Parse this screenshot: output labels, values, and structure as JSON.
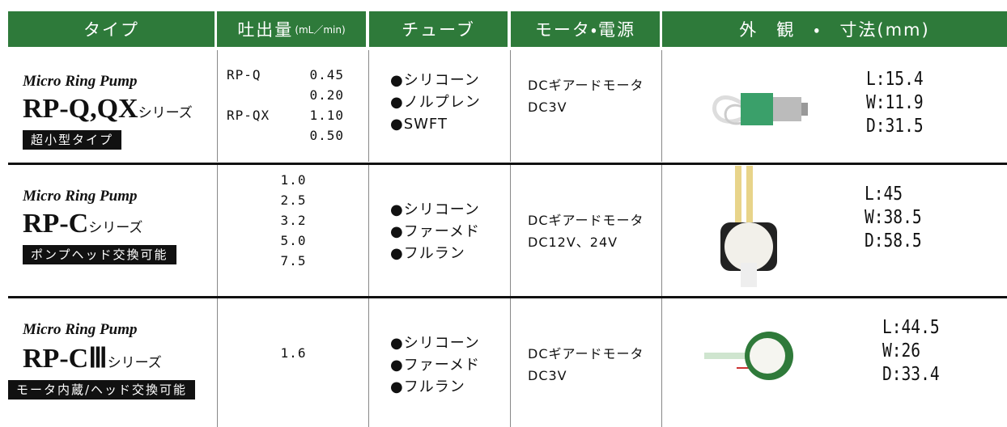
{
  "header": {
    "type": "タイプ",
    "flow": "吐出量",
    "flow_unit": "(mL／min)",
    "tube": "チューブ",
    "motor": "モータ・電源",
    "appearance": "外　観　・　寸法(mm)"
  },
  "rows": [
    {
      "brand": "Micro Ring Pump",
      "model": "RP-Q,QX",
      "suffix": "シリーズ",
      "badge": "超小型タイプ",
      "flow": [
        {
          "model": "RP-Q",
          "values": [
            "0.45",
            "0.20"
          ]
        },
        {
          "model": "RP-QX",
          "values": [
            "1.10",
            "0.50"
          ]
        }
      ],
      "tubes": [
        "●シリコーン",
        "●ノルプレン",
        "●SWFT"
      ],
      "motor": [
        "DCギアードモータ",
        "DC3V"
      ],
      "dims": [
        "L:15.4",
        "W:11.9",
        "D:31.5"
      ]
    },
    {
      "brand": "Micro Ring Pump",
      "model": "RP-C",
      "suffix": "シリーズ",
      "badge": "ポンプヘッド交換可能",
      "flow": [
        {
          "model": null,
          "values": [
            "1.0",
            "2.5",
            "3.2",
            "5.0",
            "7.5"
          ]
        }
      ],
      "tubes": [
        "●シリコーン",
        "●ファーメド",
        "●フルラン"
      ],
      "motor": [
        "DCギアードモータ",
        "DC12V、24V"
      ],
      "dims": [
        "L:45",
        "W:38.5",
        "D:58.5"
      ]
    },
    {
      "brand": "Micro Ring Pump",
      "model": "RP-CⅢ",
      "suffix": "シリーズ",
      "badge": "モータ内蔵/ヘッド交換可能",
      "flow": [
        {
          "model": null,
          "values": [
            "1.6"
          ]
        }
      ],
      "tubes": [
        "●シリコーン",
        "●ファーメド",
        "●フルラン"
      ],
      "motor": [
        "DCギアードモータ",
        "DC3V"
      ],
      "dims": [
        "L:44.5",
        "W:26",
        "D:33.4"
      ]
    }
  ]
}
